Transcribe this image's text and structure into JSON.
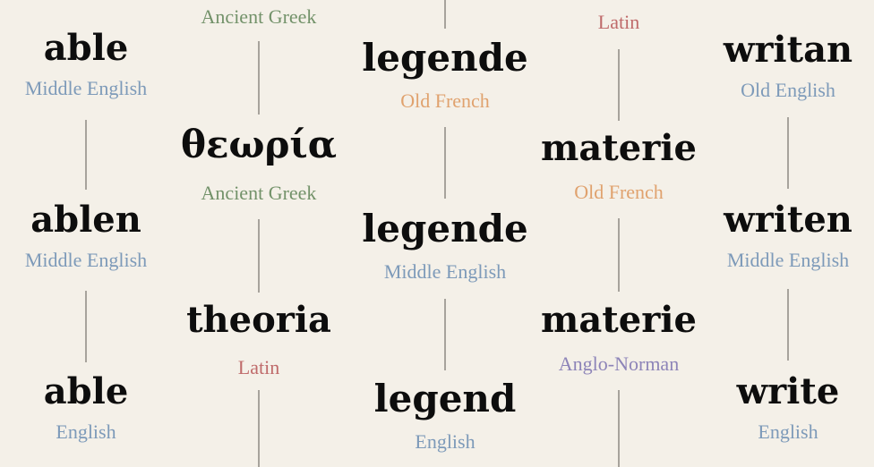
{
  "colors": {
    "background": "#f4f0e8",
    "word": "#0d0d0d",
    "connector": "#a7a39c",
    "languages": {
      "Middle English": "#7d9ab9",
      "English": "#7d9ab9",
      "Old English": "#7d9ab9",
      "Ancient Greek": "#73926a",
      "Latin": "#bf6a6a",
      "Old French": "#e0a26e",
      "Anglo-Norman": "#8d84b8"
    }
  },
  "columns": [
    {
      "id": "able",
      "nodes": [
        {
          "word": "able",
          "lang": "Middle English"
        },
        {
          "word": "ablen",
          "lang": "Middle English"
        },
        {
          "word": "able",
          "lang": "English"
        }
      ]
    },
    {
      "id": "theory",
      "nodes": [
        {
          "word": "",
          "lang": "Ancient Greek"
        },
        {
          "word": "θεωρία",
          "lang": "Ancient Greek"
        },
        {
          "word": "theoria",
          "lang": "Latin"
        }
      ]
    },
    {
      "id": "legend",
      "nodes": [
        {
          "word": "legende",
          "lang": "Old French"
        },
        {
          "word": "legende",
          "lang": "Middle English"
        },
        {
          "word": "legend",
          "lang": "English"
        }
      ]
    },
    {
      "id": "matter",
      "nodes": [
        {
          "word": "",
          "lang": "Latin"
        },
        {
          "word": "materie",
          "lang": "Old French"
        },
        {
          "word": "materie",
          "lang": "Anglo-Norman"
        }
      ]
    },
    {
      "id": "write",
      "nodes": [
        {
          "word": "writan",
          "lang": "Old English"
        },
        {
          "word": "writen",
          "lang": "Middle English"
        },
        {
          "word": "write",
          "lang": "English"
        }
      ]
    }
  ]
}
